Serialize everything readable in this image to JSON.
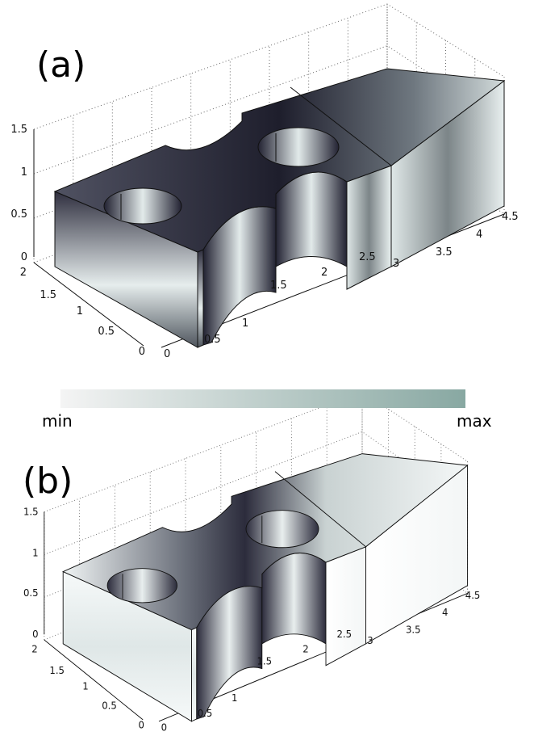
{
  "panels": [
    {
      "label": "(a)",
      "z_ticks": [
        "0",
        "0.5",
        "1",
        "1.5"
      ],
      "y_ticks": [
        "0",
        "0.5",
        "1",
        "1.5",
        "2"
      ],
      "x_ticks": [
        "0",
        "0.5",
        "1",
        "1.5",
        "2",
        "2.5",
        "3",
        "3.5",
        "4",
        "4.5"
      ]
    },
    {
      "label": "(b)",
      "z_ticks": [
        "0",
        "0.5",
        "1",
        "1.5"
      ],
      "y_ticks": [
        "0",
        "0.5",
        "1",
        "1.5",
        "2"
      ],
      "x_ticks": [
        "0",
        "0.5",
        "1",
        "1.5",
        "2",
        "2.5",
        "3",
        "3.5",
        "4",
        "4.5"
      ]
    }
  ],
  "colorbar": {
    "min_label": "min",
    "max_label": "max"
  }
}
